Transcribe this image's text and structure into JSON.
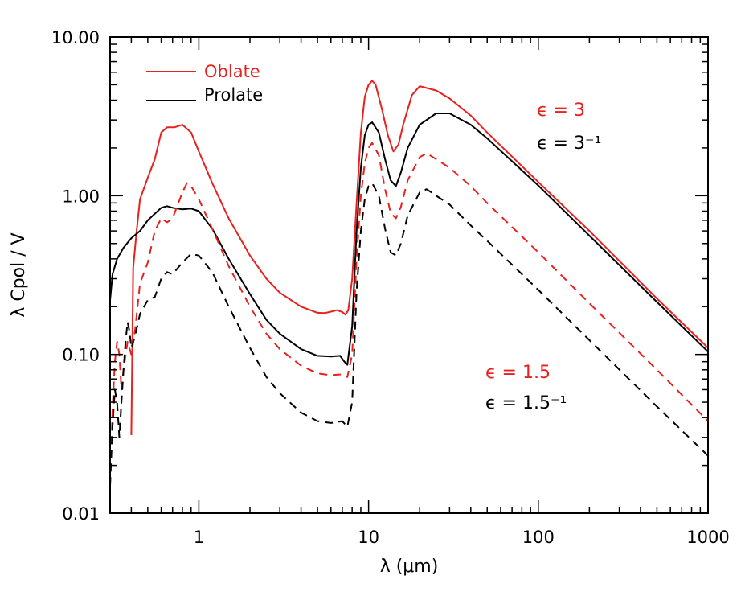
{
  "chart_data": {
    "type": "line",
    "x_scale": "log",
    "y_scale": "log",
    "xlabel": "λ (μm)",
    "ylabel": "λ Cpol / V",
    "xlim": [
      0.3,
      1000
    ],
    "ylim": [
      0.01,
      10
    ],
    "x_ticks": [
      {
        "value": 1,
        "label": "1"
      },
      {
        "value": 10,
        "label": "10"
      },
      {
        "value": 100,
        "label": "100"
      },
      {
        "value": 1000,
        "label": "1000"
      }
    ],
    "y_ticks": [
      {
        "value": 0.01,
        "label": "0.01"
      },
      {
        "value": 0.1,
        "label": "0.10"
      },
      {
        "value": 1,
        "label": "1.00"
      },
      {
        "value": 10,
        "label": "10.00"
      }
    ],
    "grid": false,
    "legend": {
      "position": "top-left",
      "entries": [
        {
          "label": "Oblate",
          "color": "#e8201e"
        },
        {
          "label": "Prolate",
          "color": "#000000"
        }
      ]
    },
    "annotations": [
      {
        "text": "ϵ = 3",
        "color": "#e8201e"
      },
      {
        "text": "ϵ = 3⁻¹",
        "color": "#000000"
      },
      {
        "text": "ϵ = 1.5",
        "color": "#e8201e"
      },
      {
        "text": "ϵ = 1.5⁻¹",
        "color": "#000000"
      }
    ],
    "series": [
      {
        "key": "oblate_eps3",
        "color": "#e8201e",
        "dash": "solid",
        "points": [
          [
            0.4,
            0.031
          ],
          [
            0.41,
            0.35
          ],
          [
            0.43,
            0.6
          ],
          [
            0.45,
            0.95
          ],
          [
            0.5,
            1.3
          ],
          [
            0.55,
            1.7
          ],
          [
            0.6,
            2.5
          ],
          [
            0.65,
            2.7
          ],
          [
            0.72,
            2.7
          ],
          [
            0.8,
            2.8
          ],
          [
            0.9,
            2.5
          ],
          [
            1.0,
            1.9
          ],
          [
            1.2,
            1.2
          ],
          [
            1.5,
            0.72
          ],
          [
            2.0,
            0.42
          ],
          [
            2.5,
            0.3
          ],
          [
            3.0,
            0.245
          ],
          [
            4.0,
            0.2
          ],
          [
            5.0,
            0.183
          ],
          [
            5.5,
            0.182
          ],
          [
            6.0,
            0.186
          ],
          [
            6.5,
            0.19
          ],
          [
            7.0,
            0.185
          ],
          [
            7.3,
            0.178
          ],
          [
            7.6,
            0.19
          ],
          [
            8.0,
            0.3
          ],
          [
            8.5,
            0.9
          ],
          [
            9.0,
            2.5
          ],
          [
            9.5,
            4.2
          ],
          [
            10.0,
            5.0
          ],
          [
            10.5,
            5.3
          ],
          [
            11.0,
            5.0
          ],
          [
            12.0,
            3.5
          ],
          [
            13.0,
            2.4
          ],
          [
            14.0,
            1.9
          ],
          [
            15.0,
            2.1
          ],
          [
            16.0,
            2.8
          ],
          [
            18.0,
            4.3
          ],
          [
            20.0,
            4.9
          ],
          [
            25.0,
            4.6
          ],
          [
            30.0,
            4.1
          ],
          [
            40.0,
            3.2
          ],
          [
            50.0,
            2.5
          ],
          [
            100.0,
            1.22
          ],
          [
            200.0,
            0.6
          ],
          [
            500.0,
            0.225
          ],
          [
            1000.0,
            0.11
          ]
        ]
      },
      {
        "key": "prolate_eps3",
        "color": "#000000",
        "dash": "solid",
        "points": [
          [
            0.3,
            0.22
          ],
          [
            0.31,
            0.32
          ],
          [
            0.33,
            0.4
          ],
          [
            0.36,
            0.47
          ],
          [
            0.4,
            0.54
          ],
          [
            0.45,
            0.6
          ],
          [
            0.5,
            0.7
          ],
          [
            0.6,
            0.84
          ],
          [
            0.65,
            0.86
          ],
          [
            0.7,
            0.84
          ],
          [
            0.8,
            0.82
          ],
          [
            0.9,
            0.83
          ],
          [
            1.0,
            0.8
          ],
          [
            1.2,
            0.62
          ],
          [
            1.5,
            0.4
          ],
          [
            2.0,
            0.24
          ],
          [
            2.5,
            0.165
          ],
          [
            3.0,
            0.135
          ],
          [
            4.0,
            0.108
          ],
          [
            5.0,
            0.098
          ],
          [
            6.0,
            0.097
          ],
          [
            6.8,
            0.098
          ],
          [
            7.2,
            0.09
          ],
          [
            7.5,
            0.086
          ],
          [
            8.0,
            0.15
          ],
          [
            8.5,
            0.6
          ],
          [
            9.0,
            1.5
          ],
          [
            9.5,
            2.4
          ],
          [
            10.0,
            2.8
          ],
          [
            10.5,
            2.9
          ],
          [
            11.5,
            2.5
          ],
          [
            12.5,
            1.7
          ],
          [
            13.5,
            1.25
          ],
          [
            14.5,
            1.15
          ],
          [
            15.5,
            1.4
          ],
          [
            17.0,
            2.0
          ],
          [
            20.0,
            2.8
          ],
          [
            25.0,
            3.3
          ],
          [
            30.0,
            3.3
          ],
          [
            40.0,
            2.8
          ],
          [
            50.0,
            2.3
          ],
          [
            100.0,
            1.16
          ],
          [
            200.0,
            0.56
          ],
          [
            500.0,
            0.214
          ],
          [
            1000.0,
            0.104
          ]
        ]
      },
      {
        "key": "oblate_eps1_5",
        "color": "#e8201e",
        "dash": "dashed",
        "points": [
          [
            0.3,
            0.015
          ],
          [
            0.31,
            0.045
          ],
          [
            0.32,
            0.09
          ],
          [
            0.33,
            0.12
          ],
          [
            0.34,
            0.1
          ],
          [
            0.35,
            0.06
          ],
          [
            0.36,
            0.08
          ],
          [
            0.38,
            0.12
          ],
          [
            0.4,
            0.1
          ],
          [
            0.42,
            0.14
          ],
          [
            0.45,
            0.28
          ],
          [
            0.5,
            0.38
          ],
          [
            0.55,
            0.6
          ],
          [
            0.6,
            0.72
          ],
          [
            0.65,
            0.68
          ],
          [
            0.7,
            0.72
          ],
          [
            0.8,
            1.05
          ],
          [
            0.85,
            1.2
          ],
          [
            0.9,
            1.15
          ],
          [
            1.0,
            0.95
          ],
          [
            1.2,
            0.62
          ],
          [
            1.5,
            0.36
          ],
          [
            2.0,
            0.2
          ],
          [
            2.5,
            0.135
          ],
          [
            3.0,
            0.108
          ],
          [
            4.0,
            0.085
          ],
          [
            5.0,
            0.076
          ],
          [
            6.0,
            0.074
          ],
          [
            7.0,
            0.075
          ],
          [
            7.5,
            0.072
          ],
          [
            8.0,
            0.1
          ],
          [
            8.5,
            0.4
          ],
          [
            9.0,
            1.0
          ],
          [
            9.5,
            1.6
          ],
          [
            10.0,
            2.0
          ],
          [
            10.5,
            2.15
          ],
          [
            11.5,
            1.8
          ],
          [
            12.5,
            1.1
          ],
          [
            13.5,
            0.78
          ],
          [
            14.5,
            0.72
          ],
          [
            15.5,
            0.85
          ],
          [
            17.0,
            1.25
          ],
          [
            20.0,
            1.75
          ],
          [
            22.0,
            1.85
          ],
          [
            25.0,
            1.7
          ],
          [
            30.0,
            1.5
          ],
          [
            40.0,
            1.15
          ],
          [
            50.0,
            0.9
          ],
          [
            100.0,
            0.44
          ],
          [
            200.0,
            0.21
          ],
          [
            500.0,
            0.08
          ],
          [
            1000.0,
            0.038
          ]
        ]
      },
      {
        "key": "prolate_eps1_5",
        "color": "#000000",
        "dash": "dashed",
        "points": [
          [
            0.3,
            0.015
          ],
          [
            0.31,
            0.035
          ],
          [
            0.32,
            0.06
          ],
          [
            0.33,
            0.05
          ],
          [
            0.34,
            0.03
          ],
          [
            0.35,
            0.05
          ],
          [
            0.36,
            0.08
          ],
          [
            0.37,
            0.12
          ],
          [
            0.38,
            0.16
          ],
          [
            0.39,
            0.14
          ],
          [
            0.4,
            0.11
          ],
          [
            0.42,
            0.13
          ],
          [
            0.45,
            0.18
          ],
          [
            0.5,
            0.22
          ],
          [
            0.55,
            0.23
          ],
          [
            0.6,
            0.3
          ],
          [
            0.65,
            0.33
          ],
          [
            0.7,
            0.32
          ],
          [
            0.8,
            0.38
          ],
          [
            0.9,
            0.43
          ],
          [
            1.0,
            0.42
          ],
          [
            1.2,
            0.33
          ],
          [
            1.5,
            0.2
          ],
          [
            2.0,
            0.11
          ],
          [
            2.5,
            0.072
          ],
          [
            3.0,
            0.057
          ],
          [
            4.0,
            0.043
          ],
          [
            5.0,
            0.038
          ],
          [
            6.0,
            0.037
          ],
          [
            7.0,
            0.038
          ],
          [
            7.5,
            0.035
          ],
          [
            8.0,
            0.05
          ],
          [
            8.5,
            0.25
          ],
          [
            9.0,
            0.6
          ],
          [
            9.5,
            0.95
          ],
          [
            10.0,
            1.15
          ],
          [
            10.5,
            1.2
          ],
          [
            11.5,
            1.0
          ],
          [
            12.5,
            0.62
          ],
          [
            13.5,
            0.44
          ],
          [
            14.5,
            0.42
          ],
          [
            15.5,
            0.5
          ],
          [
            17.0,
            0.75
          ],
          [
            20.0,
            1.05
          ],
          [
            22.0,
            1.1
          ],
          [
            25.0,
            1.0
          ],
          [
            30.0,
            0.88
          ],
          [
            40.0,
            0.65
          ],
          [
            50.0,
            0.52
          ],
          [
            100.0,
            0.255
          ],
          [
            200.0,
            0.123
          ],
          [
            500.0,
            0.047
          ],
          [
            1000.0,
            0.023
          ]
        ]
      }
    ]
  }
}
